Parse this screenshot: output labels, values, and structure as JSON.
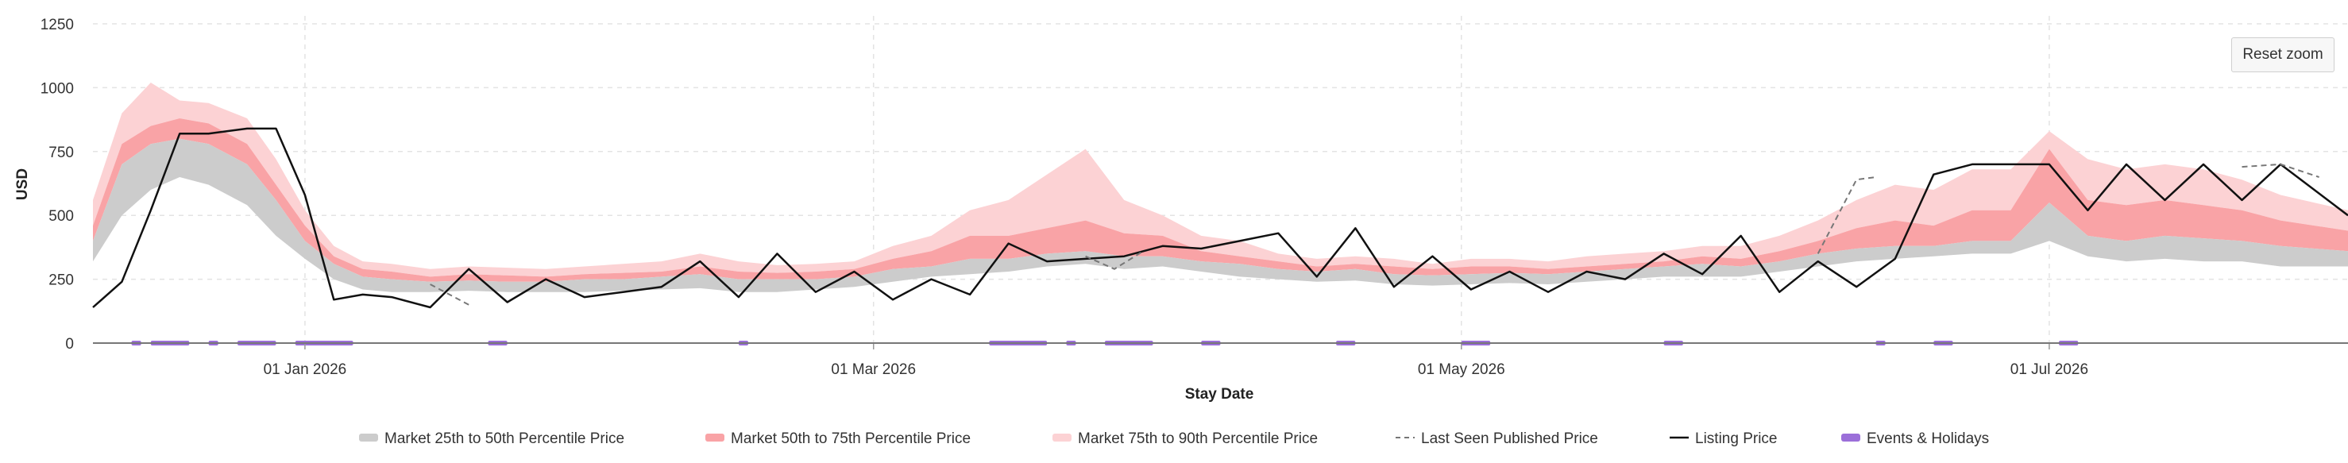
{
  "chart_data": {
    "type": "area",
    "title": "",
    "xlabel": "Stay Date",
    "ylabel": "USD",
    "ylim": [
      0,
      1250
    ],
    "yticks": [
      0,
      250,
      500,
      750,
      1000,
      1250
    ],
    "xlim": [
      "2025-12-10",
      "2026-08-01"
    ],
    "xticks": [
      {
        "date": "2026-01-01",
        "label": "01 Jan 2026"
      },
      {
        "date": "2026-03-01",
        "label": "01 Mar 2026"
      },
      {
        "date": "2026-05-01",
        "label": "01 May 2026"
      },
      {
        "date": "2026-07-01",
        "label": "01 Jul 2026"
      }
    ],
    "grid": true,
    "legend_position": "bottom",
    "legend": [
      {
        "key": "p25_50",
        "label": "Market 25th to 50th Percentile Price",
        "color": "#cccccc",
        "style": "area"
      },
      {
        "key": "p50_75",
        "label": "Market 50th to 75th Percentile Price",
        "color": "#f9a3a6",
        "style": "area"
      },
      {
        "key": "p75_90",
        "label": "Market 75th to 90th Percentile Price",
        "color": "#fcd2d4",
        "style": "area"
      },
      {
        "key": "last_seen",
        "label": "Last Seen Published Price",
        "color": "#777777",
        "style": "dashed"
      },
      {
        "key": "listing",
        "label": "Listing Price",
        "color": "#111111",
        "style": "line"
      },
      {
        "key": "events",
        "label": "Events & Holidays",
        "color": "#9b6fd9",
        "style": "bar"
      }
    ],
    "x": [
      "2025-12-10",
      "2025-12-13",
      "2025-12-16",
      "2025-12-19",
      "2025-12-22",
      "2025-12-26",
      "2025-12-29",
      "2026-01-01",
      "2026-01-04",
      "2026-01-07",
      "2026-01-10",
      "2026-01-14",
      "2026-01-18",
      "2026-01-22",
      "2026-01-26",
      "2026-01-30",
      "2026-02-03",
      "2026-02-07",
      "2026-02-11",
      "2026-02-15",
      "2026-02-19",
      "2026-02-23",
      "2026-02-27",
      "2026-03-03",
      "2026-03-07",
      "2026-03-11",
      "2026-03-15",
      "2026-03-19",
      "2026-03-23",
      "2026-03-27",
      "2026-03-31",
      "2026-04-04",
      "2026-04-08",
      "2026-04-12",
      "2026-04-16",
      "2026-04-20",
      "2026-04-24",
      "2026-04-28",
      "2026-05-02",
      "2026-05-06",
      "2026-05-10",
      "2026-05-14",
      "2026-05-18",
      "2026-05-22",
      "2026-05-26",
      "2026-05-30",
      "2026-06-03",
      "2026-06-07",
      "2026-06-11",
      "2026-06-15",
      "2026-06-19",
      "2026-06-23",
      "2026-06-27",
      "2026-07-01",
      "2026-07-05",
      "2026-07-09",
      "2026-07-13",
      "2026-07-17",
      "2026-07-21",
      "2026-07-25",
      "2026-08-01"
    ],
    "series": [
      {
        "name": "Market 25th to 50th Percentile Price",
        "low": [
          320,
          500,
          600,
          650,
          620,
          540,
          420,
          330,
          250,
          210,
          200,
          200,
          205,
          200,
          200,
          200,
          205,
          210,
          215,
          200,
          200,
          210,
          220,
          240,
          260,
          270,
          280,
          300,
          310,
          290,
          300,
          280,
          260,
          250,
          240,
          245,
          230,
          225,
          230,
          235,
          230,
          240,
          250,
          260,
          260,
          260,
          280,
          300,
          320,
          330,
          340,
          350,
          350,
          400,
          340,
          320,
          330,
          320,
          320,
          300,
          300
        ],
        "high": [
          400,
          700,
          780,
          800,
          780,
          700,
          560,
          400,
          310,
          260,
          250,
          240,
          245,
          240,
          240,
          250,
          250,
          260,
          270,
          250,
          250,
          250,
          260,
          290,
          300,
          330,
          330,
          350,
          360,
          340,
          340,
          320,
          310,
          290,
          280,
          290,
          270,
          265,
          270,
          275,
          270,
          280,
          290,
          300,
          310,
          300,
          320,
          350,
          370,
          380,
          380,
          400,
          400,
          550,
          420,
          400,
          420,
          410,
          400,
          380,
          360
        ]
      },
      {
        "name": "Market 50th to 75th Percentile Price",
        "low": [
          400,
          700,
          780,
          800,
          780,
          700,
          560,
          400,
          310,
          260,
          250,
          240,
          245,
          240,
          240,
          250,
          250,
          260,
          270,
          250,
          250,
          250,
          260,
          290,
          300,
          330,
          330,
          350,
          360,
          340,
          340,
          320,
          310,
          290,
          280,
          290,
          270,
          265,
          270,
          275,
          270,
          280,
          290,
          300,
          310,
          300,
          320,
          350,
          370,
          380,
          380,
          400,
          400,
          550,
          420,
          400,
          420,
          410,
          400,
          380,
          360
        ],
        "high": [
          460,
          780,
          850,
          880,
          860,
          780,
          620,
          460,
          340,
          290,
          280,
          260,
          270,
          265,
          260,
          270,
          275,
          280,
          300,
          280,
          275,
          280,
          290,
          330,
          360,
          420,
          420,
          450,
          480,
          430,
          420,
          360,
          340,
          320,
          300,
          310,
          300,
          290,
          300,
          300,
          290,
          300,
          310,
          320,
          340,
          330,
          360,
          400,
          450,
          480,
          460,
          520,
          520,
          760,
          560,
          540,
          560,
          540,
          520,
          480,
          440
        ]
      },
      {
        "name": "Market 75th to 90th Percentile Price",
        "low": [
          460,
          780,
          850,
          880,
          860,
          780,
          620,
          460,
          340,
          290,
          280,
          260,
          270,
          265,
          260,
          270,
          275,
          280,
          300,
          280,
          275,
          280,
          290,
          330,
          360,
          420,
          420,
          450,
          480,
          430,
          420,
          360,
          340,
          320,
          300,
          310,
          300,
          290,
          300,
          300,
          290,
          300,
          310,
          320,
          340,
          330,
          360,
          400,
          450,
          480,
          460,
          520,
          520,
          760,
          560,
          540,
          560,
          540,
          520,
          480,
          440
        ],
        "high": [
          560,
          900,
          1020,
          950,
          940,
          880,
          720,
          520,
          380,
          320,
          310,
          290,
          300,
          295,
          290,
          300,
          310,
          320,
          350,
          320,
          305,
          310,
          320,
          380,
          420,
          520,
          560,
          660,
          760,
          560,
          500,
          420,
          400,
          350,
          330,
          340,
          330,
          310,
          330,
          330,
          320,
          340,
          350,
          360,
          380,
          380,
          420,
          480,
          560,
          620,
          600,
          680,
          680,
          830,
          720,
          680,
          700,
          680,
          640,
          580,
          520
        ]
      },
      {
        "name": "Listing Price",
        "values": [
          140,
          240,
          520,
          820,
          820,
          840,
          840,
          580,
          170,
          190,
          180,
          140,
          290,
          160,
          250,
          180,
          200,
          220,
          320,
          180,
          350,
          200,
          280,
          170,
          250,
          190,
          390,
          320,
          330,
          340,
          380,
          370,
          400,
          430,
          260,
          450,
          220,
          340,
          210,
          280,
          200,
          280,
          250,
          350,
          270,
          420,
          200,
          320,
          220,
          330,
          660,
          700,
          700,
          700,
          520,
          700,
          560,
          700,
          560,
          700,
          500
        ]
      },
      {
        "name": "Last Seen Published Price",
        "segments": [
          {
            "x": [
              "2026-01-14",
              "2026-01-18"
            ],
            "values": [
              230,
              150
            ]
          },
          {
            "x": [
              "2026-03-23",
              "2026-03-26",
              "2026-03-29"
            ],
            "values": [
              340,
              290,
              360
            ]
          },
          {
            "x": [
              "2026-06-07",
              "2026-06-11",
              "2026-06-13"
            ],
            "values": [
              350,
              640,
              650
            ]
          },
          {
            "x": [
              "2026-07-21",
              "2026-07-25",
              "2026-07-29"
            ],
            "values": [
              690,
              700,
              650
            ]
          }
        ]
      }
    ],
    "events": [
      {
        "start": "2025-12-14",
        "end": "2025-12-15"
      },
      {
        "start": "2025-12-16",
        "end": "2025-12-20"
      },
      {
        "start": "2025-12-22",
        "end": "2025-12-23"
      },
      {
        "start": "2025-12-25",
        "end": "2025-12-29"
      },
      {
        "start": "2025-12-31",
        "end": "2026-01-06"
      },
      {
        "start": "2026-01-20",
        "end": "2026-01-22"
      },
      {
        "start": "2026-02-15",
        "end": "2026-02-16"
      },
      {
        "start": "2026-03-13",
        "end": "2026-03-19"
      },
      {
        "start": "2026-03-21",
        "end": "2026-03-22"
      },
      {
        "start": "2026-03-25",
        "end": "2026-03-30"
      },
      {
        "start": "2026-04-04",
        "end": "2026-04-06"
      },
      {
        "start": "2026-04-18",
        "end": "2026-04-20"
      },
      {
        "start": "2026-05-01",
        "end": "2026-05-04"
      },
      {
        "start": "2026-05-22",
        "end": "2026-05-24"
      },
      {
        "start": "2026-06-13",
        "end": "2026-06-14"
      },
      {
        "start": "2026-06-19",
        "end": "2026-06-21"
      },
      {
        "start": "2026-07-02",
        "end": "2026-07-04"
      }
    ]
  },
  "controls": {
    "reset_zoom_label": "Reset zoom"
  }
}
